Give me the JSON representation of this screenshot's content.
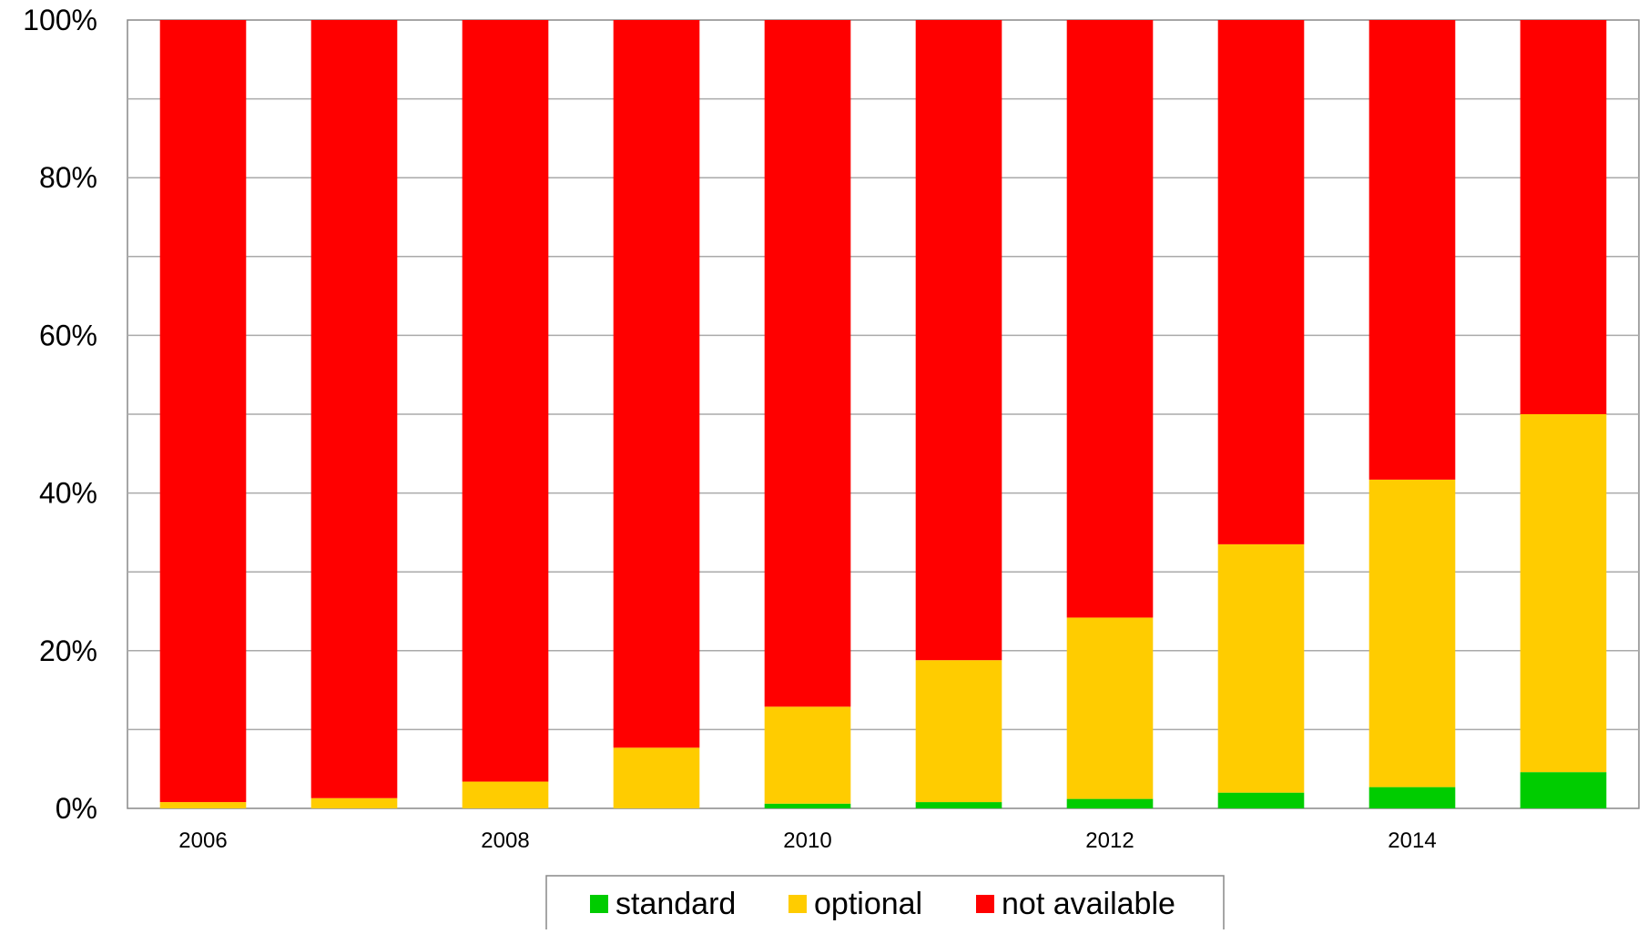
{
  "chart_data": {
    "type": "bar",
    "stacked": true,
    "x": [
      "2006",
      "2007",
      "2008",
      "2009",
      "2010",
      "2011",
      "2012",
      "2013",
      "2014",
      "2015"
    ],
    "x_tick_labels": [
      "2006",
      "",
      "2008",
      "",
      "2010",
      "",
      "2012",
      "",
      "2014",
      ""
    ],
    "y_tick_labels": [
      "0%",
      "20%",
      "40%",
      "60%",
      "80%",
      "100%"
    ],
    "ylim": [
      0,
      100
    ],
    "y_minor_step": 10,
    "grid": true,
    "legend_placement": "bottom-center",
    "series": [
      {
        "name": "standard",
        "color": "#00cc00",
        "values": [
          0.0,
          0.0,
          0.0,
          0.0,
          0.6,
          0.8,
          1.2,
          2.0,
          2.7,
          4.6
        ]
      },
      {
        "name": "optional",
        "color": "#ffcc00",
        "values": [
          0.8,
          1.3,
          3.4,
          7.7,
          12.3,
          18.0,
          23.0,
          31.5,
          39.0,
          45.4
        ]
      },
      {
        "name": "not available",
        "color": "#ff0000",
        "values": [
          99.2,
          98.7,
          96.6,
          92.3,
          87.1,
          81.2,
          75.8,
          66.5,
          58.3,
          50.0
        ]
      }
    ]
  }
}
